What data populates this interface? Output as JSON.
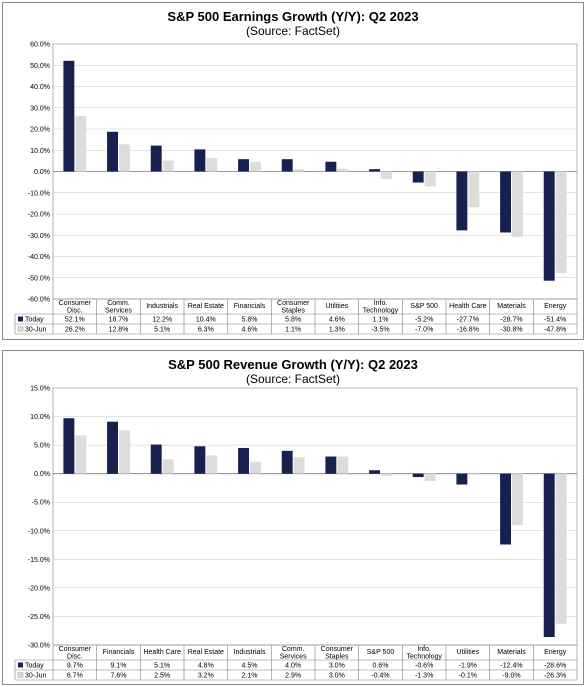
{
  "charts": [
    {
      "id": "earnings",
      "title": "S&P 500 Earnings Growth (Y/Y): Q2 2023",
      "subtitle": "(Source: FactSet)"
    },
    {
      "id": "revenue",
      "title": "S&P 500 Revenue Growth (Y/Y): Q2 2023",
      "subtitle": "(Source: FactSet)"
    }
  ],
  "colors": {
    "today": "#17214f",
    "jun30": "#dcdcdc",
    "grid": "#c8c8c8",
    "axis": "#808080"
  },
  "chart_data": [
    {
      "type": "bar",
      "title": "S&P 500 Earnings Growth (Y/Y): Q2 2023",
      "subtitle": "(Source: FactSet)",
      "categories": [
        "Consumer|Disc.",
        "Comm.|Services",
        "Industrials",
        "Real Estate",
        "Financials",
        "Consumer|Staples",
        "Utilities",
        "Info.|Technology",
        "S&P 500",
        "Health Care",
        "Materials",
        "Energy"
      ],
      "series": [
        {
          "name": "Today",
          "values": [
            52.1,
            18.7,
            12.2,
            10.4,
            5.8,
            5.8,
            4.6,
            1.1,
            -5.2,
            -27.7,
            -28.7,
            -51.4
          ],
          "labels": [
            "52.1%",
            "18.7%",
            "12.2%",
            "10.4%",
            "5.8%",
            "5.8%",
            "4.6%",
            "1.1%",
            "-5.2%",
            "-27.7%",
            "-28.7%",
            "-51.4%"
          ]
        },
        {
          "name": "30-Jun",
          "values": [
            26.2,
            12.8,
            5.1,
            6.3,
            4.6,
            1.1,
            1.3,
            -3.5,
            -7.0,
            -16.8,
            -30.8,
            -47.8
          ],
          "labels": [
            "26.2%",
            "12.8%",
            "5.1%",
            "6.3%",
            "4.6%",
            "1.1%",
            "1.3%",
            "-3.5%",
            "-7.0%",
            "-16.8%",
            "-30.8%",
            "-47.8%"
          ]
        }
      ],
      "ylim": [
        -60,
        60
      ],
      "ytick_step": 10,
      "ytick_decimals": 1,
      "grid": true,
      "legend": "data-table"
    },
    {
      "type": "bar",
      "title": "S&P 500 Revenue Growth (Y/Y): Q2 2023",
      "subtitle": "(Source: FactSet)",
      "categories": [
        "Consumer|Disc.",
        "Financials",
        "Health Care",
        "Real Estate",
        "Industrials",
        "Comm.|Services",
        "Consumer|Staples",
        "S&P 500",
        "Info.|Technology",
        "Utilities",
        "Materials",
        "Energy"
      ],
      "series": [
        {
          "name": "Today",
          "values": [
            9.7,
            9.1,
            5.1,
            4.8,
            4.5,
            4.0,
            3.0,
            0.6,
            -0.6,
            -1.9,
            -12.4,
            -28.6
          ],
          "labels": [
            "9.7%",
            "9.1%",
            "5.1%",
            "4.8%",
            "4.5%",
            "4.0%",
            "3.0%",
            "0.6%",
            "-0.6%",
            "-1.9%",
            "-12.4%",
            "-28.6%"
          ]
        },
        {
          "name": "30-Jun",
          "values": [
            6.7,
            7.6,
            2.5,
            3.2,
            2.1,
            2.9,
            3.0,
            -0.4,
            -1.3,
            -0.1,
            -9.0,
            -26.3
          ],
          "labels": [
            "6.7%",
            "7.6%",
            "2.5%",
            "3.2%",
            "2.1%",
            "2.9%",
            "3.0%",
            "-0.4%",
            "-1.3%",
            "-0.1%",
            "-9.0%",
            "-26.3%"
          ]
        }
      ],
      "ylim": [
        -30,
        15
      ],
      "ytick_step": 5,
      "ytick_decimals": 1,
      "grid": true,
      "legend": "data-table"
    }
  ]
}
